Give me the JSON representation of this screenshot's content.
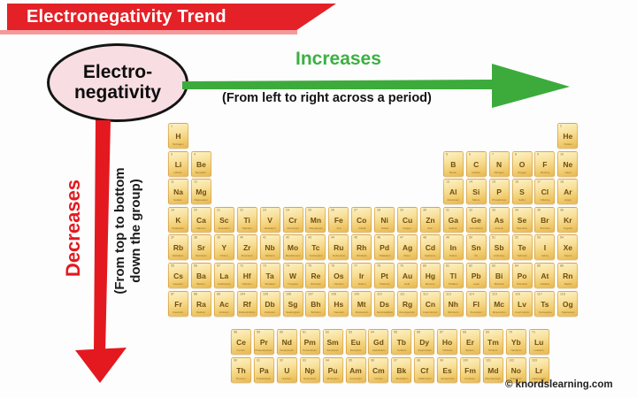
{
  "banner": {
    "title": "Electronegativity Trend"
  },
  "bubble": {
    "line1": "Electro-",
    "line2": "negativity"
  },
  "trend_right": {
    "label": "Increases",
    "note": "(From left to right across a period)"
  },
  "trend_down": {
    "label": "Decreases",
    "note_line1": "(From top to bottom",
    "note_line2": "down the group)"
  },
  "credit": "© knordslearning.com",
  "colors": {
    "banner_red": "#e42127",
    "banner_ribbon_light": "#f4999c",
    "arrow_green": "#3cab3c",
    "increase_text_green": "#3cb043",
    "arrow_red": "#e3191f",
    "decrease_text_red": "#e3191f",
    "bubble_pink": "#f8dee2",
    "cell_gold_light": "#fdf2c6",
    "cell_gold_dark": "#e9b751",
    "cell_text_brown": "#6e4e12"
  },
  "periodic_table": {
    "main_rows": [
      [
        [
          1,
          "H",
          "Hydrogen",
          0
        ],
        [
          2,
          "He",
          "Helium",
          17
        ]
      ],
      [
        [
          3,
          "Li",
          "Lithium",
          0
        ],
        [
          4,
          "Be",
          "Beryllium",
          1
        ],
        [
          5,
          "B",
          "Boron",
          12
        ],
        [
          6,
          "C",
          "Carbon",
          13
        ],
        [
          7,
          "N",
          "Nitrogen",
          14
        ],
        [
          8,
          "O",
          "Oxygen",
          15
        ],
        [
          9,
          "F",
          "Fluorine",
          16
        ],
        [
          10,
          "Ne",
          "Neon",
          17
        ]
      ],
      [
        [
          11,
          "Na",
          "Sodium",
          0
        ],
        [
          12,
          "Mg",
          "Magnesium",
          1
        ],
        [
          13,
          "Al",
          "Aluminium",
          12
        ],
        [
          14,
          "Si",
          "Silicon",
          13
        ],
        [
          15,
          "P",
          "Phosphorus",
          14
        ],
        [
          16,
          "S",
          "Sulfur",
          15
        ],
        [
          17,
          "Cl",
          "Chlorine",
          16
        ],
        [
          18,
          "Ar",
          "Argon",
          17
        ]
      ],
      [
        [
          19,
          "K",
          "Potassium",
          0
        ],
        [
          20,
          "Ca",
          "Calcium",
          1
        ],
        [
          21,
          "Sc",
          "Scandium",
          2
        ],
        [
          22,
          "Ti",
          "Titanium",
          3
        ],
        [
          23,
          "V",
          "Vanadium",
          4
        ],
        [
          24,
          "Cr",
          "Chromium",
          5
        ],
        [
          25,
          "Mn",
          "Manganese",
          6
        ],
        [
          26,
          "Fe",
          "Iron",
          7
        ],
        [
          27,
          "Co",
          "Cobalt",
          8
        ],
        [
          28,
          "Ni",
          "Nickel",
          9
        ],
        [
          29,
          "Cu",
          "Copper",
          10
        ],
        [
          30,
          "Zn",
          "Zinc",
          11
        ],
        [
          31,
          "Ga",
          "Gallium",
          12
        ],
        [
          32,
          "Ge",
          "Germanium",
          13
        ],
        [
          33,
          "As",
          "Arsenic",
          14
        ],
        [
          34,
          "Se",
          "Selenium",
          15
        ],
        [
          35,
          "Br",
          "Bromine",
          16
        ],
        [
          36,
          "Kr",
          "Krypton",
          17
        ]
      ],
      [
        [
          37,
          "Rb",
          "Rubidium",
          0
        ],
        [
          38,
          "Sr",
          "Strontium",
          1
        ],
        [
          39,
          "Y",
          "Yttrium",
          2
        ],
        [
          40,
          "Zr",
          "Zirconium",
          3
        ],
        [
          41,
          "Nb",
          "Niobium",
          4
        ],
        [
          42,
          "Mo",
          "Molybdenum",
          5
        ],
        [
          43,
          "Tc",
          "Technetium",
          6
        ],
        [
          44,
          "Ru",
          "Ruthenium",
          7
        ],
        [
          45,
          "Rh",
          "Rhodium",
          8
        ],
        [
          46,
          "Pd",
          "Palladium",
          9
        ],
        [
          47,
          "Ag",
          "Silver",
          10
        ],
        [
          48,
          "Cd",
          "Cadmium",
          11
        ],
        [
          49,
          "In",
          "Indium",
          12
        ],
        [
          50,
          "Sn",
          "Tin",
          13
        ],
        [
          51,
          "Sb",
          "Antimony",
          14
        ],
        [
          52,
          "Te",
          "Tellurium",
          15
        ],
        [
          53,
          "I",
          "Iodine",
          16
        ],
        [
          54,
          "Xe",
          "Xenon",
          17
        ]
      ],
      [
        [
          55,
          "Cs",
          "Caesium",
          0
        ],
        [
          56,
          "Ba",
          "Barium",
          1
        ],
        [
          57,
          "La",
          "Lanthanum",
          2
        ],
        [
          72,
          "Hf",
          "Hafnium",
          3
        ],
        [
          73,
          "Ta",
          "Tantalum",
          4
        ],
        [
          74,
          "W",
          "Tungsten",
          5
        ],
        [
          75,
          "Re",
          "Rhenium",
          6
        ],
        [
          76,
          "Os",
          "Osmium",
          7
        ],
        [
          77,
          "Ir",
          "Iridium",
          8
        ],
        [
          78,
          "Pt",
          "Platinum",
          9
        ],
        [
          79,
          "Au",
          "Gold",
          10
        ],
        [
          80,
          "Hg",
          "Mercury",
          11
        ],
        [
          81,
          "Tl",
          "Thallium",
          12
        ],
        [
          82,
          "Pb",
          "Lead",
          13
        ],
        [
          83,
          "Bi",
          "Bismuth",
          14
        ],
        [
          84,
          "Po",
          "Polonium",
          15
        ],
        [
          85,
          "At",
          "Astatine",
          16
        ],
        [
          86,
          "Rn",
          "Radon",
          17
        ]
      ],
      [
        [
          87,
          "Fr",
          "Francium",
          0
        ],
        [
          88,
          "Ra",
          "Radium",
          1
        ],
        [
          89,
          "Ac",
          "Actinium",
          2
        ],
        [
          104,
          "Rf",
          "Rutherfordium",
          3
        ],
        [
          105,
          "Db",
          "Dubnium",
          4
        ],
        [
          106,
          "Sg",
          "Seaborgium",
          5
        ],
        [
          107,
          "Bh",
          "Bohrium",
          6
        ],
        [
          108,
          "Hs",
          "Hassium",
          7
        ],
        [
          109,
          "Mt",
          "Meitnerium",
          8
        ],
        [
          110,
          "Ds",
          "Darmstadtium",
          9
        ],
        [
          111,
          "Rg",
          "Roentgenium",
          10
        ],
        [
          112,
          "Cn",
          "Copernicium",
          11
        ],
        [
          113,
          "Nh",
          "Nihonium",
          12
        ],
        [
          114,
          "Fl",
          "Flerovium",
          13
        ],
        [
          115,
          "Mc",
          "Moscovium",
          14
        ],
        [
          116,
          "Lv",
          "Livermorium",
          15
        ],
        [
          117,
          "Ts",
          "Tennessine",
          16
        ],
        [
          118,
          "Og",
          "Oganesson",
          17
        ]
      ]
    ],
    "f_block_rows": [
      [
        [
          58,
          "Ce",
          "Cerium"
        ],
        [
          59,
          "Pr",
          "Praseodymium"
        ],
        [
          60,
          "Nd",
          "Neodymium"
        ],
        [
          61,
          "Pm",
          "Promethium"
        ],
        [
          62,
          "Sm",
          "Samarium"
        ],
        [
          63,
          "Eu",
          "Europium"
        ],
        [
          64,
          "Gd",
          "Gadolinium"
        ],
        [
          65,
          "Tb",
          "Terbium"
        ],
        [
          66,
          "Dy",
          "Dysprosium"
        ],
        [
          67,
          "Ho",
          "Holmium"
        ],
        [
          68,
          "Er",
          "Erbium"
        ],
        [
          69,
          "Tm",
          "Thulium"
        ],
        [
          70,
          "Yb",
          "Ytterbium"
        ],
        [
          71,
          "Lu",
          "Lutetium"
        ]
      ],
      [
        [
          90,
          "Th",
          "Thorium"
        ],
        [
          91,
          "Pa",
          "Protactinium"
        ],
        [
          92,
          "U",
          "Uranium"
        ],
        [
          93,
          "Np",
          "Neptunium"
        ],
        [
          94,
          "Pu",
          "Plutonium"
        ],
        [
          95,
          "Am",
          "Americium"
        ],
        [
          96,
          "Cm",
          "Curium"
        ],
        [
          97,
          "Bk",
          "Berkelium"
        ],
        [
          98,
          "Cf",
          "Californium"
        ],
        [
          99,
          "Es",
          "Einsteinium"
        ],
        [
          100,
          "Fm",
          "Fermium"
        ],
        [
          101,
          "Md",
          "Mendelevium"
        ],
        [
          102,
          "No",
          "Nobelium"
        ],
        [
          103,
          "Lr",
          "Lawrencium"
        ]
      ]
    ]
  }
}
